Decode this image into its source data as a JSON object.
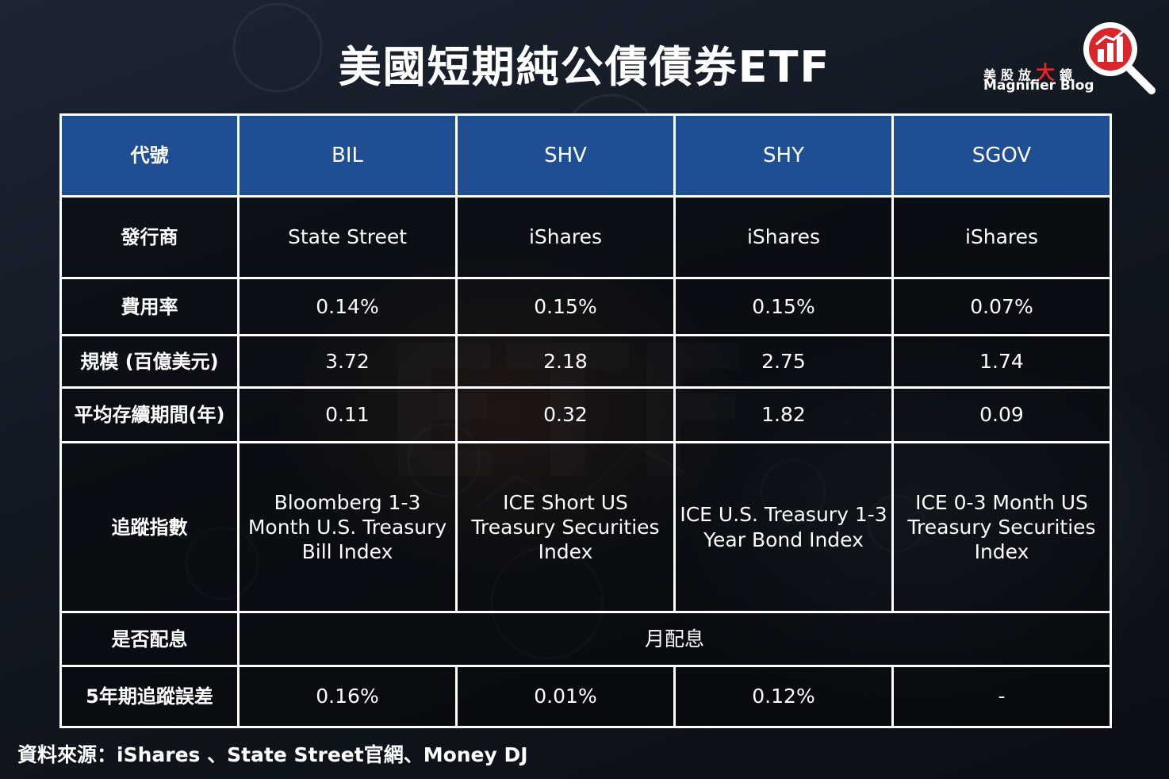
{
  "title": "美國短期純公債債券ETF",
  "brand": {
    "cn_prefix": "美股放",
    "cn_accent": "大",
    "cn_suffix": "鏡",
    "en": "Magnifier Blog",
    "icon": "magnifier-bar-chart-icon",
    "accent_color": "#e3262b"
  },
  "colors": {
    "header_bg": "#1f4e93",
    "border": "#ffffff"
  },
  "table": {
    "header": {
      "label": "代號",
      "cols": [
        "BIL",
        "SHV",
        "SHY",
        "SGOV"
      ]
    },
    "rows": [
      {
        "label": "發行商",
        "cells": [
          "State Street",
          "iShares",
          "iShares",
          "iShares"
        ]
      },
      {
        "label": "費用率",
        "cells": [
          "0.14%",
          "0.15%",
          "0.15%",
          "0.07%"
        ]
      },
      {
        "label": "規模 (百億美元)",
        "cells": [
          "3.72",
          "2.18",
          "2.75",
          "1.74"
        ]
      },
      {
        "label": "平均存續期間(年)",
        "cells": [
          "0.11",
          "0.32",
          "1.82",
          "0.09"
        ]
      },
      {
        "label": "追蹤指數",
        "cells": [
          "Bloomberg 1-3 Month U.S. Treasury Bill Index",
          "ICE Short US Treasury Securities Index",
          "ICE U.S. Treasury 1-3 Year Bond Index",
          "ICE 0-3 Month US Treasury Securities Index"
        ]
      },
      {
        "label": "是否配息",
        "merged": "月配息"
      },
      {
        "label": "5年期追蹤誤差",
        "cells": [
          "0.16%",
          "0.01%",
          "0.12%",
          "-"
        ]
      }
    ]
  },
  "source": "資料來源：iShares 、State Street官網、Money DJ"
}
